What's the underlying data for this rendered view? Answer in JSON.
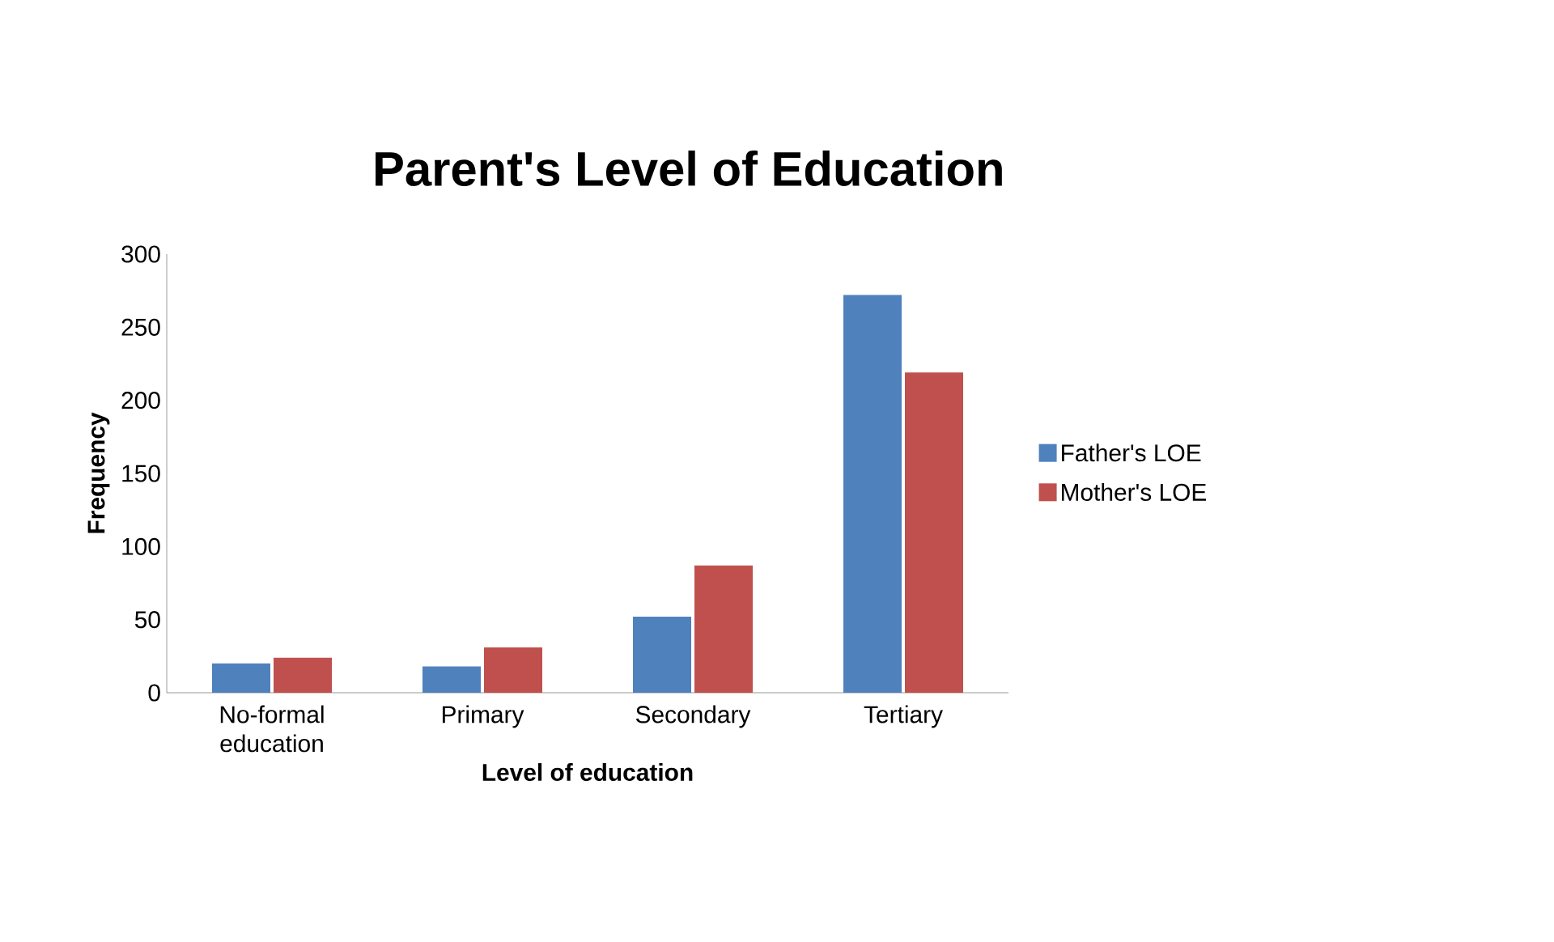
{
  "chart_data": {
    "type": "bar",
    "title": "Parent's Level of Education",
    "xlabel": "Level of education",
    "ylabel": "Frequency",
    "categories": [
      "No-formal education",
      "Primary",
      "Secondary",
      "Tertiary"
    ],
    "series": [
      {
        "name": "Father's LOE",
        "color": "#4f81bd",
        "values": [
          20,
          18,
          52,
          272
        ]
      },
      {
        "name": "Mother's LOE",
        "color": "#c0504d",
        "values": [
          24,
          31,
          87,
          219
        ]
      }
    ],
    "ylim": [
      0,
      300
    ],
    "yticks": [
      0,
      50,
      100,
      150,
      200,
      250,
      300
    ],
    "legend": "right"
  }
}
